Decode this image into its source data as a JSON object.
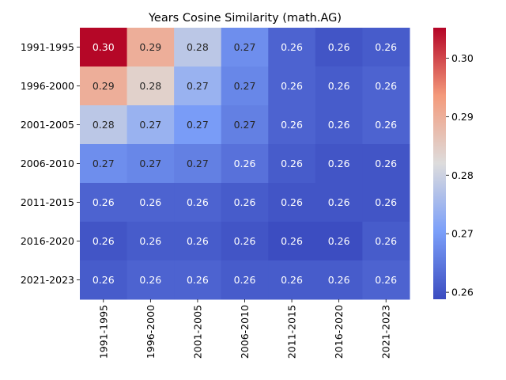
{
  "chart_data": {
    "type": "heatmap",
    "title": "Years Cosine Similarity (math.AG)",
    "xlabel": "",
    "ylabel": "",
    "rows": [
      "1991-1995",
      "1996-2000",
      "2001-2005",
      "2006-2010",
      "2011-2015",
      "2016-2020",
      "2021-2023"
    ],
    "columns": [
      "1991-1995",
      "1996-2000",
      "2001-2005",
      "2006-2010",
      "2011-2015",
      "2016-2020",
      "2021-2023"
    ],
    "values": [
      [
        0.305,
        0.29,
        0.278,
        0.268,
        0.262,
        0.26,
        0.261
      ],
      [
        0.29,
        0.284,
        0.274,
        0.267,
        0.262,
        0.261,
        0.262
      ],
      [
        0.278,
        0.274,
        0.27,
        0.266,
        0.262,
        0.261,
        0.262
      ],
      [
        0.268,
        0.267,
        0.266,
        0.264,
        0.261,
        0.26,
        0.26
      ],
      [
        0.262,
        0.262,
        0.262,
        0.261,
        0.26,
        0.26,
        0.26
      ],
      [
        0.26,
        0.261,
        0.261,
        0.26,
        0.259,
        0.259,
        0.261
      ],
      [
        0.261,
        0.262,
        0.262,
        0.261,
        0.261,
        0.261,
        0.262
      ]
    ],
    "cell_labels": [
      [
        "0.30",
        "0.29",
        "0.28",
        "0.27",
        "0.26",
        "0.26",
        "0.26"
      ],
      [
        "0.29",
        "0.28",
        "0.27",
        "0.27",
        "0.26",
        "0.26",
        "0.26"
      ],
      [
        "0.28",
        "0.27",
        "0.27",
        "0.27",
        "0.26",
        "0.26",
        "0.26"
      ],
      [
        "0.27",
        "0.27",
        "0.27",
        "0.26",
        "0.26",
        "0.26",
        "0.26"
      ],
      [
        "0.26",
        "0.26",
        "0.26",
        "0.26",
        "0.26",
        "0.26",
        "0.26"
      ],
      [
        "0.26",
        "0.26",
        "0.26",
        "0.26",
        "0.26",
        "0.26",
        "0.26"
      ],
      [
        "0.26",
        "0.26",
        "0.26",
        "0.26",
        "0.26",
        "0.26",
        "0.26"
      ]
    ],
    "colormap": "coolwarm",
    "vmin": 0.2588,
    "vmax": 0.3052,
    "colorbar_ticks": [
      0.26,
      0.27,
      0.28,
      0.29,
      0.3
    ],
    "colorbar_tick_labels": [
      "0.26",
      "0.27",
      "0.28",
      "0.29",
      "0.30"
    ]
  }
}
